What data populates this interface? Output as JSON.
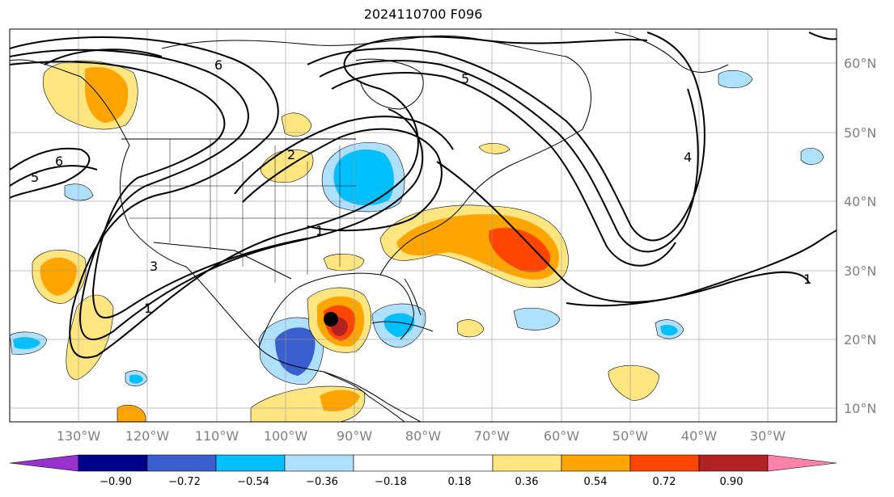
{
  "title": "2024110700 F096",
  "map": {
    "longitude_labels": [
      "130°W",
      "120°W",
      "110°W",
      "100°W",
      "90°W",
      "80°W",
      "70°W",
      "60°W",
      "50°W",
      "40°W",
      "30°W"
    ],
    "latitude_labels": [
      "60°N",
      "50°N",
      "40°N",
      "30°N",
      "20°N",
      "10°N"
    ],
    "contour_labels": [
      "5",
      "6",
      "2",
      "1",
      "3",
      "1",
      "6",
      "5",
      "1",
      "4"
    ],
    "marker": "storm-center-dot"
  },
  "colorbar": {
    "ticks": [
      "−0.90",
      "−0.72",
      "−0.54",
      "−0.36",
      "−0.18",
      "0.18",
      "0.36",
      "0.54",
      "0.72",
      "0.90"
    ],
    "colors": [
      "#9932cc",
      "#00008b",
      "#3a5fcd",
      "#00bfff",
      "#b0e0ff",
      "#ffffff",
      "#ffe680",
      "#ffa500",
      "#ff4500",
      "#b22222",
      "#ff82ab"
    ]
  }
}
